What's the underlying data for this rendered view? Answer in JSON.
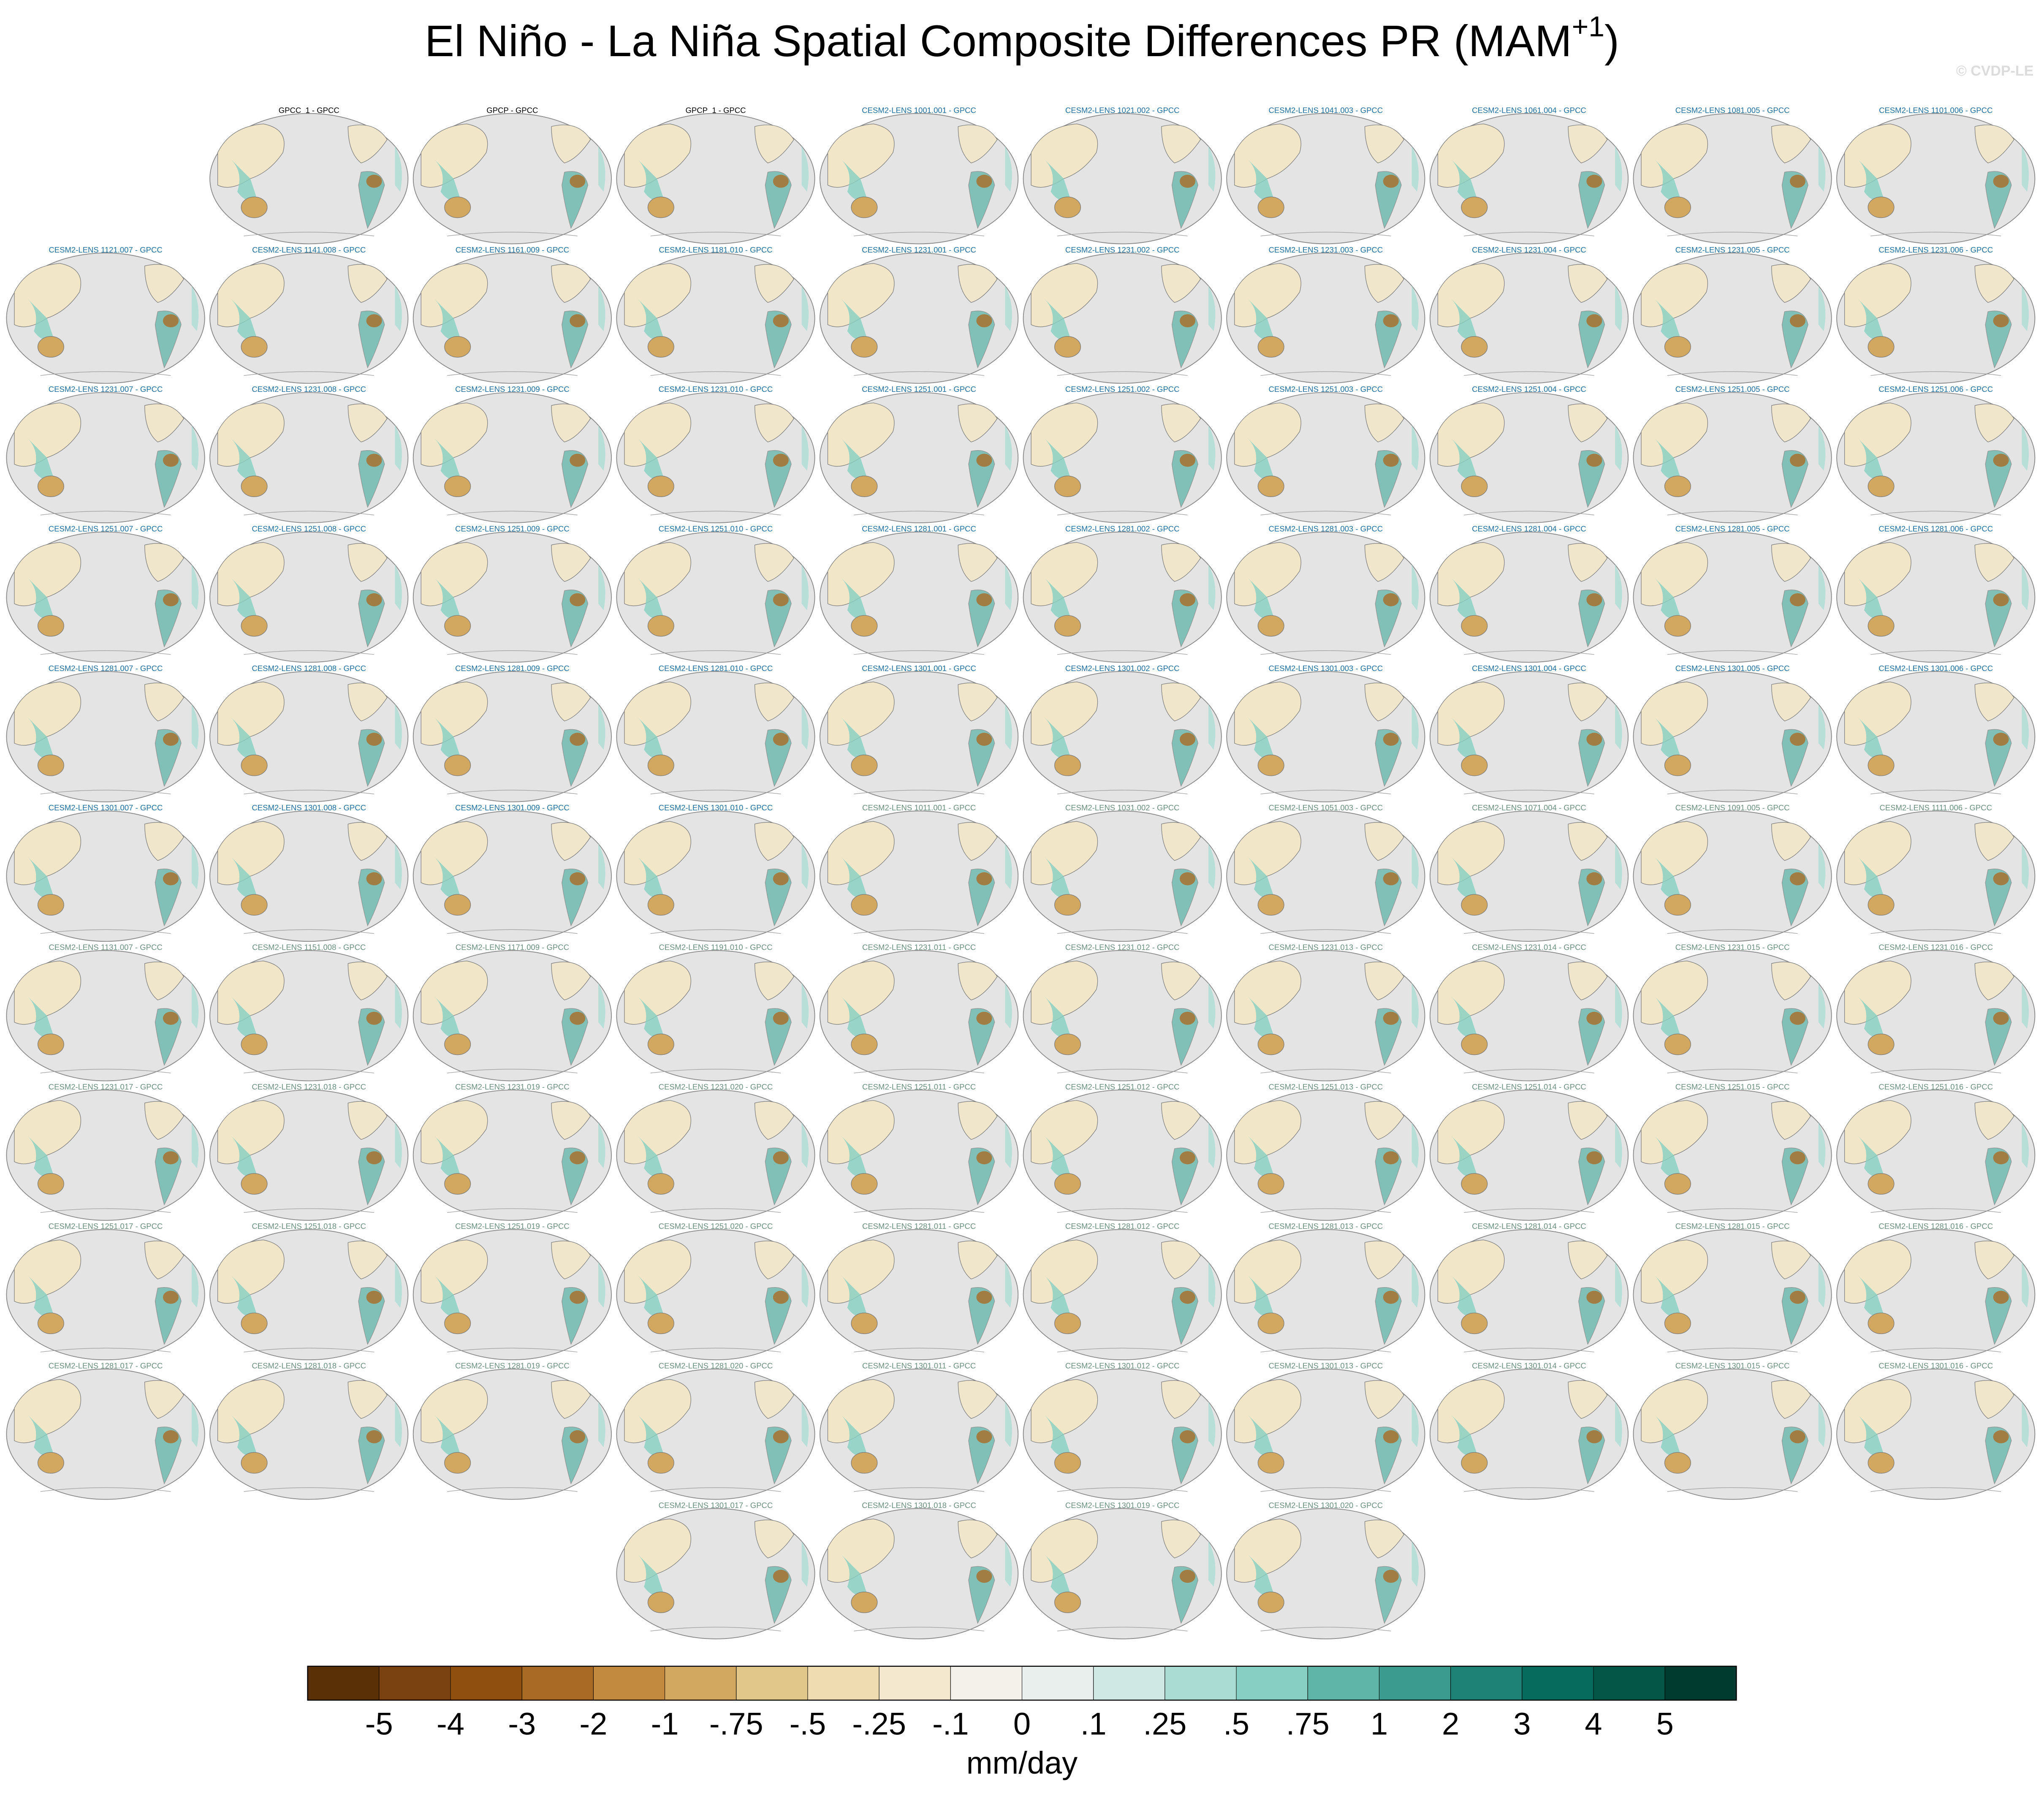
{
  "title": "El Niño - La Niña Spatial Composite Differences PR (MAM",
  "title_superscript": "+1",
  "title_end": ")",
  "credit": "© CVDP-LE",
  "panels": [
    "GPCC_1 - GPCC",
    "GPCP - GPCC",
    "GPCP_1 - GPCC",
    "CESM2-LENS 1001.001 - GPCC",
    "CESM2-LENS 1021.002 - GPCC",
    "CESM2-LENS 1041.003 - GPCC",
    "CESM2-LENS 1061.004 - GPCC",
    "CESM2-LENS 1081.005 - GPCC",
    "CESM2-LENS 1101.006 - GPCC",
    "CESM2-LENS 1121.007 - GPCC",
    "CESM2-LENS 1141.008 - GPCC",
    "CESM2-LENS 1161.009 - GPCC",
    "CESM2-LENS 1181.010 - GPCC",
    "CESM2-LENS 1231.001 - GPCC",
    "CESM2-LENS 1231.002 - GPCC",
    "CESM2-LENS 1231.003 - GPCC",
    "CESM2-LENS 1231.004 - GPCC",
    "CESM2-LENS 1231.005 - GPCC",
    "CESM2-LENS 1231.006 - GPCC",
    "CESM2-LENS 1231.007 - GPCC",
    "CESM2-LENS 1231.008 - GPCC",
    "CESM2-LENS 1231.009 - GPCC",
    "CESM2-LENS 1231.010 - GPCC",
    "CESM2-LENS 1251.001 - GPCC",
    "CESM2-LENS 1251.002 - GPCC",
    "CESM2-LENS 1251.003 - GPCC",
    "CESM2-LENS 1251.004 - GPCC",
    "CESM2-LENS 1251.005 - GPCC",
    "CESM2-LENS 1251.006 - GPCC",
    "CESM2-LENS 1251.007 - GPCC",
    "CESM2-LENS 1251.008 - GPCC",
    "CESM2-LENS 1251.009 - GPCC",
    "CESM2-LENS 1251.010 - GPCC",
    "CESM2-LENS 1281.001 - GPCC",
    "CESM2-LENS 1281.002 - GPCC",
    "CESM2-LENS 1281.003 - GPCC",
    "CESM2-LENS 1281.004 - GPCC",
    "CESM2-LENS 1281.005 - GPCC",
    "CESM2-LENS 1281.006 - GPCC",
    "CESM2-LENS 1281.007 - GPCC",
    "CESM2-LENS 1281.008 - GPCC",
    "CESM2-LENS 1281.009 - GPCC",
    "CESM2-LENS 1281.010 - GPCC",
    "CESM2-LENS 1301.001 - GPCC",
    "CESM2-LENS 1301.002 - GPCC",
    "CESM2-LENS 1301.003 - GPCC",
    "CESM2-LENS 1301.004 - GPCC",
    "CESM2-LENS 1301.005 - GPCC",
    "CESM2-LENS 1301.006 - GPCC",
    "CESM2-LENS 1301.007 - GPCC",
    "CESM2-LENS 1301.008 - GPCC",
    "CESM2-LENS 1301.009 - GPCC",
    "CESM2-LENS 1301.010 - GPCC",
    "CESM2-LENS 1011.001 - GPCC",
    "CESM2-LENS 1031.002 - GPCC",
    "CESM2-LENS 1051.003 - GPCC",
    "CESM2-LENS 1071.004 - GPCC",
    "CESM2-LENS 1091.005 - GPCC",
    "CESM2-LENS 1111.006 - GPCC",
    "CESM2-LENS 1131.007 - GPCC",
    "CESM2-LENS 1151.008 - GPCC",
    "CESM2-LENS 1171.009 - GPCC",
    "CESM2-LENS 1191.010 - GPCC",
    "CESM2-LENS 1231.011 - GPCC",
    "CESM2-LENS 1231.012 - GPCC",
    "CESM2-LENS 1231.013 - GPCC",
    "CESM2-LENS 1231.014 - GPCC",
    "CESM2-LENS 1231.015 - GPCC",
    "CESM2-LENS 1231.016 - GPCC",
    "CESM2-LENS 1231.017 - GPCC",
    "CESM2-LENS 1231.018 - GPCC",
    "CESM2-LENS 1231.019 - GPCC",
    "CESM2-LENS 1231.020 - GPCC",
    "CESM2-LENS 1251.011 - GPCC",
    "CESM2-LENS 1251.012 - GPCC",
    "CESM2-LENS 1251.013 - GPCC",
    "CESM2-LENS 1251.014 - GPCC",
    "CESM2-LENS 1251.015 - GPCC",
    "CESM2-LENS 1251.016 - GPCC",
    "CESM2-LENS 1251.017 - GPCC",
    "CESM2-LENS 1251.018 - GPCC",
    "CESM2-LENS 1251.019 - GPCC",
    "CESM2-LENS 1251.020 - GPCC",
    "CESM2-LENS 1281.011 - GPCC",
    "CESM2-LENS 1281.012 - GPCC",
    "CESM2-LENS 1281.013 - GPCC",
    "CESM2-LENS 1281.014 - GPCC",
    "CESM2-LENS 1281.015 - GPCC",
    "CESM2-LENS 1281.016 - GPCC",
    "CESM2-LENS 1281.017 - GPCC",
    "CESM2-LENS 1281.018 - GPCC",
    "CESM2-LENS 1281.019 - GPCC",
    "CESM2-LENS 1281.020 - GPCC",
    "CESM2-LENS 1301.011 - GPCC",
    "CESM2-LENS 1301.012 - GPCC",
    "CESM2-LENS 1301.013 - GPCC",
    "CESM2-LENS 1301.014 - GPCC",
    "CESM2-LENS 1301.015 - GPCC",
    "CESM2-LENS 1301.016 - GPCC",
    "CESM2-LENS 1301.017 - GPCC",
    "CESM2-LENS 1301.018 - GPCC",
    "CESM2-LENS 1301.019 - GPCC",
    "CESM2-LENS 1301.020 - GPCC"
  ],
  "colorbar": {
    "colors": [
      "#5a3106",
      "#7a4210",
      "#8e4f0f",
      "#a96a25",
      "#c28a3f",
      "#d2a860",
      "#e2c78a",
      "#efdcb0",
      "#f4e9cf",
      "#f4f1ea",
      "#e8efed",
      "#cfe8e3",
      "#abdcd3",
      "#86cfc2",
      "#5fb5a8",
      "#3b9b8e",
      "#1e8276",
      "#066a5d",
      "#045747",
      "#003b30"
    ],
    "levels": [
      -5,
      -4,
      -3,
      -2,
      -1,
      {
        "value": -0.75,
        "label": "-.75"
      },
      {
        "value": -0.5,
        "label": "-.5"
      },
      {
        "value": -0.25,
        "label": "-.25"
      },
      {
        "value": -0.1,
        "label": "-.1"
      },
      0,
      {
        "value": 0.1,
        "label": ".1"
      },
      {
        "value": 0.25,
        "label": ".25"
      },
      {
        "value": 0.5,
        "label": ".5"
      },
      {
        "value": 0.75,
        "label": ".75"
      },
      1,
      2,
      3,
      4,
      5
    ],
    "label": "mm/day"
  }
}
